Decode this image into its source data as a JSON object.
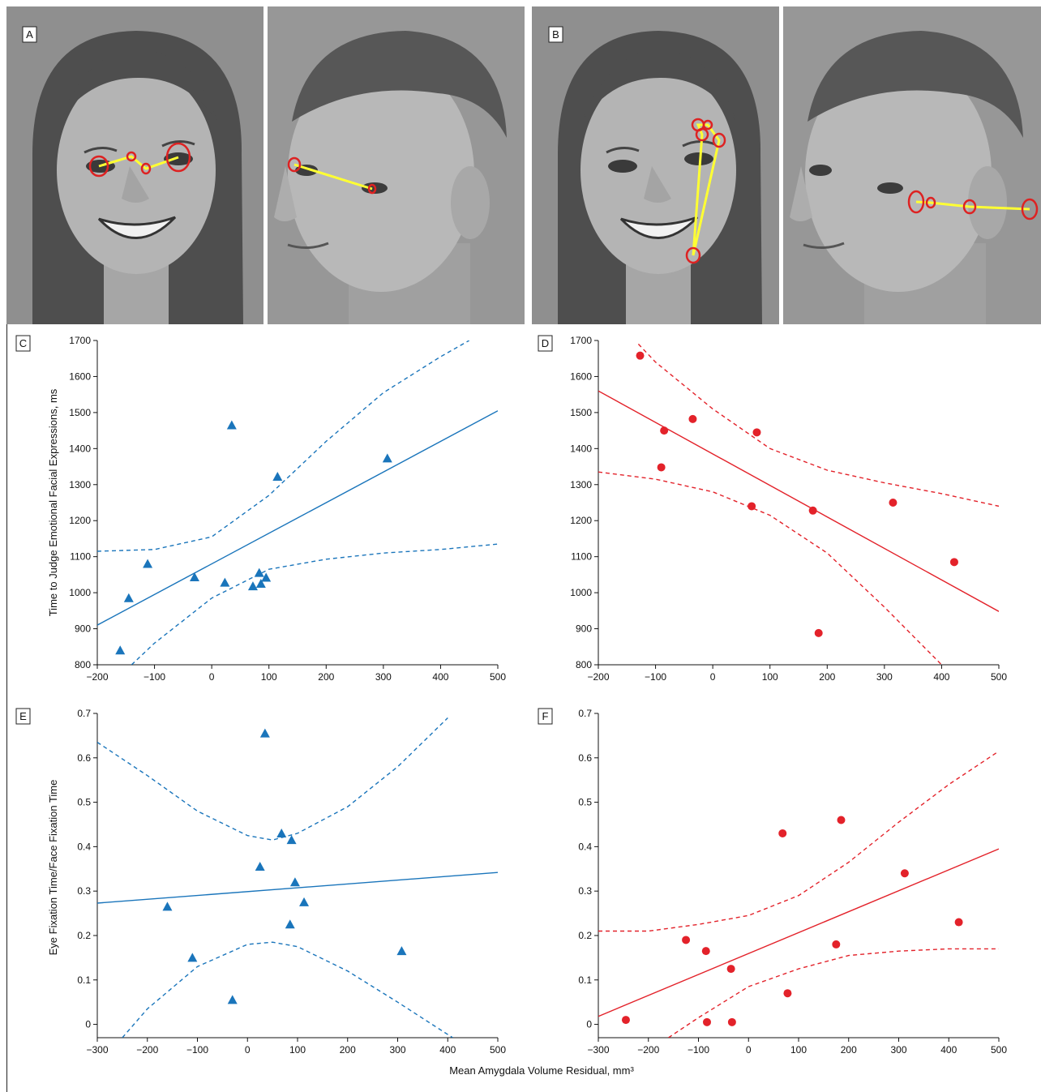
{
  "figure": {
    "panel_labels": [
      "A",
      "B",
      "C",
      "D",
      "E",
      "F"
    ],
    "y_title_top": "Time to Judge Emotional Facial Expressions, ms",
    "y_title_bottom": "Eye Fixation Time/Face Fixation Time",
    "x_title": "Mean Amygdala Volume Residual, mm³"
  },
  "colors": {
    "blue": "#1a75bb",
    "red": "#e3222a",
    "scanpath": "#ffff33",
    "fixation": "#dd2222",
    "photo_bg": "#8d8d8d",
    "skin": "#b2b2b2",
    "hair": "#4a4a4a"
  },
  "photos": {
    "A": [
      "woman-smiling-frontal",
      "man-neutral-profile"
    ],
    "B": [
      "woman-smiling-frontal",
      "man-neutral-profile"
    ]
  },
  "chart_data": [
    {
      "panel": "C",
      "type": "scatter",
      "marker": "triangle",
      "color": "#1a75bb",
      "xlim": [
        -200,
        500
      ],
      "ylim": [
        800,
        1700
      ],
      "xticks": [
        -200,
        -100,
        0,
        100,
        200,
        300,
        400,
        500
      ],
      "yticks": [
        800,
        900,
        1000,
        1100,
        1200,
        1300,
        1400,
        1500,
        1600,
        1700
      ],
      "x": [
        -160,
        -145,
        -112,
        -30,
        23,
        35,
        72,
        83,
        86,
        95,
        115,
        307
      ],
      "y": [
        840,
        985,
        1080,
        1043,
        1028,
        1465,
        1018,
        1055,
        1025,
        1042,
        1322,
        1373
      ],
      "fit_line": {
        "x": [
          -200,
          500
        ],
        "y": [
          910,
          1505
        ]
      },
      "ci_upper": {
        "x": [
          -200,
          -100,
          0,
          100,
          200,
          300,
          400,
          450
        ],
        "y": [
          1115,
          1120,
          1155,
          1270,
          1420,
          1555,
          1655,
          1700
        ]
      },
      "ci_lower": {
        "x": [
          -140,
          -100,
          0,
          100,
          200,
          300,
          400,
          500
        ],
        "y": [
          800,
          860,
          985,
          1065,
          1093,
          1110,
          1120,
          1135
        ]
      }
    },
    {
      "panel": "D",
      "type": "scatter",
      "marker": "circle",
      "color": "#e3222a",
      "xlim": [
        -200,
        500
      ],
      "ylim": [
        800,
        1700
      ],
      "xticks": [
        -200,
        -100,
        0,
        100,
        200,
        300,
        400,
        500
      ],
      "yticks": [
        800,
        900,
        1000,
        1100,
        1200,
        1300,
        1400,
        1500,
        1600,
        1700
      ],
      "x": [
        -127,
        -85,
        -90,
        -35,
        77,
        68,
        175,
        185,
        315,
        422
      ],
      "y": [
        1658,
        1450,
        1348,
        1482,
        1445,
        1240,
        1228,
        888,
        1250,
        1085
      ],
      "fit_line": {
        "x": [
          -200,
          500
        ],
        "y": [
          1560,
          948
        ]
      },
      "ci_upper": {
        "x": [
          -130,
          -100,
          0,
          100,
          200,
          300,
          400,
          500
        ],
        "y": [
          1690,
          1640,
          1510,
          1400,
          1340,
          1305,
          1275,
          1240
        ]
      },
      "ci_lower": {
        "x": [
          -200,
          -100,
          0,
          100,
          200,
          300,
          400
        ],
        "y": [
          1335,
          1315,
          1280,
          1215,
          1110,
          960,
          800
        ]
      }
    },
    {
      "panel": "E",
      "type": "scatter",
      "marker": "triangle",
      "color": "#1a75bb",
      "xlim": [
        -300,
        500
      ],
      "ylim": [
        -0.03,
        0.7
      ],
      "xticks": [
        -300,
        -200,
        -100,
        0,
        100,
        200,
        300,
        400,
        500
      ],
      "yticks": [
        0,
        0.1,
        0.2,
        0.3,
        0.4,
        0.5,
        0.6,
        0.7
      ],
      "x": [
        -160,
        -110,
        -30,
        25,
        35,
        68,
        85,
        88,
        95,
        113,
        308
      ],
      "y": [
        0.265,
        0.15,
        0.055,
        0.355,
        0.655,
        0.43,
        0.225,
        0.415,
        0.32,
        0.275,
        0.165
      ],
      "fit_line": {
        "x": [
          -300,
          500
        ],
        "y": [
          0.273,
          0.342
        ]
      },
      "ci_upper": {
        "x": [
          -300,
          -200,
          -100,
          0,
          50,
          100,
          200,
          300,
          400
        ],
        "y": [
          0.635,
          0.56,
          0.48,
          0.425,
          0.415,
          0.43,
          0.49,
          0.58,
          0.69
        ]
      },
      "ci_lower": {
        "x": [
          -250,
          -200,
          -100,
          0,
          50,
          100,
          200,
          300,
          410
        ],
        "y": [
          -0.03,
          0.035,
          0.13,
          0.18,
          0.185,
          0.175,
          0.12,
          0.05,
          -0.03
        ]
      }
    },
    {
      "panel": "F",
      "type": "scatter",
      "marker": "circle",
      "color": "#e3222a",
      "xlim": [
        -300,
        500
      ],
      "ylim": [
        -0.03,
        0.7
      ],
      "xticks": [
        -300,
        -200,
        -100,
        0,
        100,
        200,
        300,
        400,
        500
      ],
      "yticks": [
        0,
        0.1,
        0.2,
        0.3,
        0.4,
        0.5,
        0.6,
        0.7
      ],
      "x": [
        -245,
        -125,
        -85,
        -83,
        -35,
        -33,
        68,
        78,
        175,
        185,
        312,
        420
      ],
      "y": [
        0.01,
        0.19,
        0.165,
        0.005,
        0.125,
        0.005,
        0.43,
        0.07,
        0.18,
        0.46,
        0.34,
        0.23
      ],
      "fit_line": {
        "x": [
          -300,
          500
        ],
        "y": [
          0.018,
          0.395
        ]
      },
      "ci_upper": {
        "x": [
          -300,
          -200,
          -100,
          0,
          100,
          200,
          300,
          400,
          500
        ],
        "y": [
          0.21,
          0.21,
          0.225,
          0.245,
          0.29,
          0.365,
          0.455,
          0.54,
          0.615
        ]
      },
      "ci_lower": {
        "x": [
          -160,
          -100,
          0,
          100,
          200,
          300,
          400,
          500
        ],
        "y": [
          -0.03,
          0.015,
          0.085,
          0.125,
          0.155,
          0.165,
          0.17,
          0.17
        ]
      }
    }
  ]
}
